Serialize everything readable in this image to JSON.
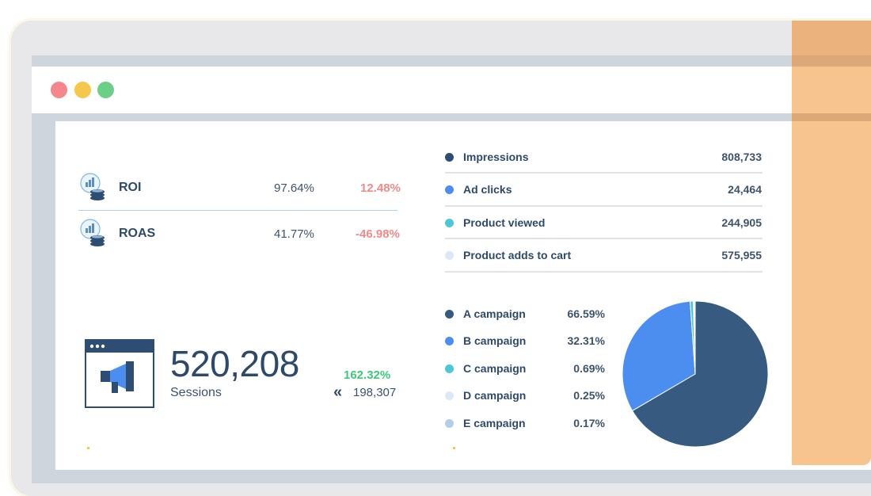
{
  "window": {
    "controls": [
      "close",
      "minimize",
      "maximize"
    ]
  },
  "kpis": [
    {
      "label": "ROI",
      "value": "97.64%",
      "change": "12.48%",
      "icon": "money-stack-chart-icon"
    },
    {
      "label": "ROAS",
      "value": "41.77%",
      "change": "-46.98%",
      "icon": "money-stack-chart-icon"
    }
  ],
  "sessions": {
    "value": "520,208",
    "label": "Sessions",
    "change": "162.32%",
    "previous": "198,307",
    "icon": "megaphone-browser-icon",
    "prev_icon": "«"
  },
  "metrics": [
    {
      "label": "Impressions",
      "value": "808,733",
      "color": "#2e4d72"
    },
    {
      "label": "Ad clicks",
      "value": "24,464",
      "color": "#4c8ef0"
    },
    {
      "label": "Product viewed",
      "value": "244,905",
      "color": "#4cc7d4"
    },
    {
      "label": "Product adds to cart",
      "value": "575,955",
      "color": "#dbe9f7"
    }
  ],
  "campaigns": [
    {
      "label": "A campaign",
      "value": "66.59%",
      "share": 66.59,
      "color": "#365a80"
    },
    {
      "label": "B campaign",
      "value": "32.31%",
      "share": 32.31,
      "color": "#4c8ef0"
    },
    {
      "label": "C campaign",
      "value": "0.69%",
      "share": 0.69,
      "color": "#4cc7d4"
    },
    {
      "label": "D campaign",
      "value": "0.25%",
      "share": 0.25,
      "color": "#dbe9f7"
    },
    {
      "label": "E campaign",
      "value": "0.17%",
      "share": 0.17,
      "color": "#b3cdeb"
    }
  ],
  "colors": {
    "negative": "#f08a8a",
    "positive": "#3ec87a",
    "accent_panel": "#f7c48f",
    "text_dark": "#2e4a6b"
  }
}
